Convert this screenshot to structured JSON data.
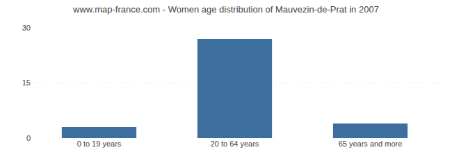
{
  "chart_data": {
    "type": "bar",
    "title": "www.map-france.com - Women age distribution of Mauvezin-de-Prat in 2007",
    "categories": [
      "0 to 19 years",
      "20 to 64 years",
      "65 years and more"
    ],
    "values": [
      3,
      27,
      4
    ],
    "color": "#3d6f9e",
    "ylim": [
      0,
      30
    ],
    "yticks": [
      0,
      15,
      30
    ],
    "grid": true
  }
}
